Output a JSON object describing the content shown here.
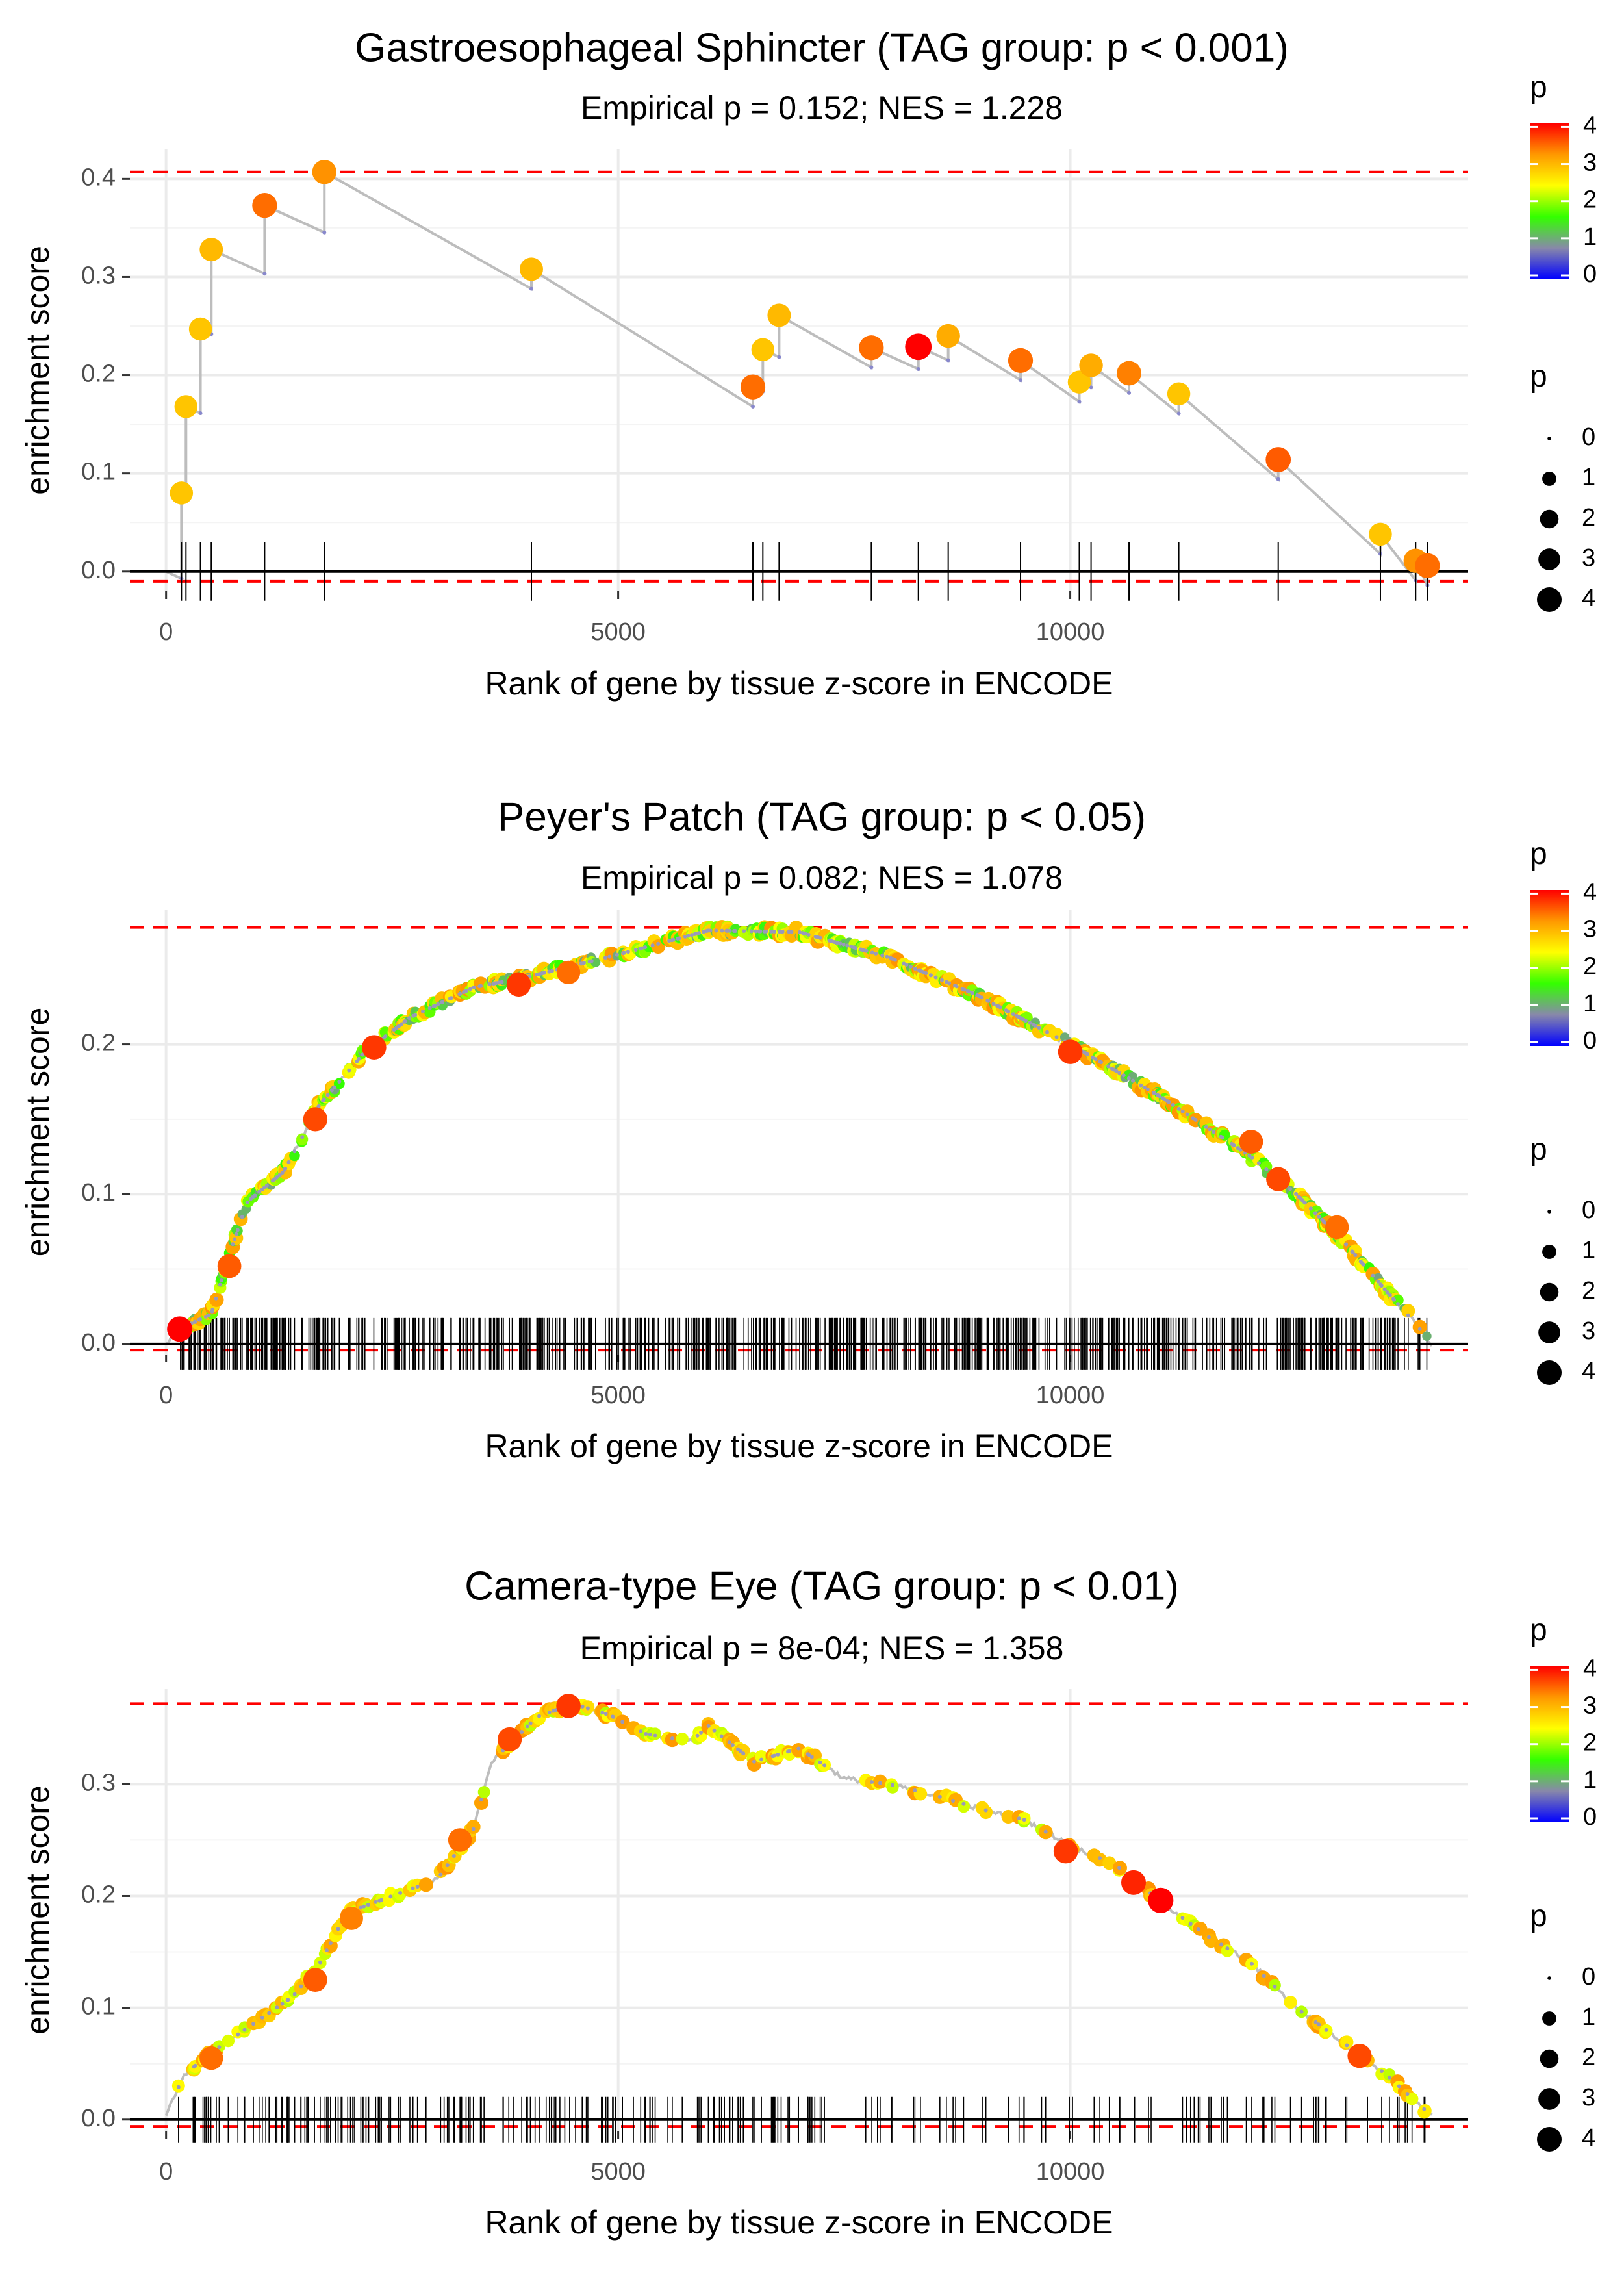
{
  "colors": {
    "curve": "#bdbdbd",
    "zero_line": "#000000",
    "limit_line": "#ff0000",
    "grid": "#ebebeb",
    "tick_text": "#4d4d4d",
    "gradient": [
      "#0000ff",
      "#8888aa",
      "#33ff00",
      "#ffff00",
      "#ff9900",
      "#ff0000"
    ]
  },
  "legend": {
    "color_title": "p",
    "color_ticks": [
      "0",
      "1",
      "2",
      "3",
      "4"
    ],
    "size_title": "p",
    "size_ticks": [
      "0",
      "1",
      "2",
      "3",
      "4"
    ]
  },
  "chart_data": [
    {
      "type": "scatter",
      "title": "Gastroesophageal Sphincter (TAG group: p < 0.001)",
      "subtitle": "Empirical p = 0.152; NES = 1.228",
      "xlabel": "Rank of gene by tissue z-score in ENCODE",
      "ylabel": "enrichment score",
      "xlim": [
        -400,
        14400
      ],
      "ylim": [
        -0.02,
        0.43
      ],
      "xticks": [
        0,
        5000,
        10000
      ],
      "xtick_labels": [
        "0",
        "5000",
        "10000"
      ],
      "yticks": [
        0.0,
        0.1,
        0.2,
        0.3,
        0.4
      ],
      "ytick_labels": [
        "0.0",
        "0.1",
        "0.2",
        "0.3",
        "0.4"
      ],
      "max_es": 0.407,
      "min_es": -0.01,
      "total_genes": 14000,
      "hits": [
        {
          "rank": 170,
          "es": 0.08,
          "p": 3.0
        },
        {
          "rank": 220,
          "es": 0.168,
          "p": 3.0
        },
        {
          "rank": 380,
          "es": 0.247,
          "p": 3.0
        },
        {
          "rank": 500,
          "es": 0.328,
          "p": 3.1
        },
        {
          "rank": 1090,
          "es": 0.373,
          "p": 3.6
        },
        {
          "rank": 1750,
          "es": 0.407,
          "p": 3.4
        },
        {
          "rank": 4040,
          "es": 0.308,
          "p": 3.1
        },
        {
          "rank": 6490,
          "es": 0.188,
          "p": 3.6
        },
        {
          "rank": 6600,
          "es": 0.226,
          "p": 3.0
        },
        {
          "rank": 6780,
          "es": 0.261,
          "p": 3.1
        },
        {
          "rank": 7800,
          "es": 0.228,
          "p": 3.6
        },
        {
          "rank": 8320,
          "es": 0.229,
          "p": 4.2
        },
        {
          "rank": 8650,
          "es": 0.24,
          "p": 3.2
        },
        {
          "rank": 9450,
          "es": 0.215,
          "p": 3.6
        },
        {
          "rank": 10100,
          "es": 0.193,
          "p": 3.0
        },
        {
          "rank": 10230,
          "es": 0.21,
          "p": 3.2
        },
        {
          "rank": 10650,
          "es": 0.202,
          "p": 3.5
        },
        {
          "rank": 11200,
          "es": 0.181,
          "p": 3.0
        },
        {
          "rank": 12300,
          "es": 0.114,
          "p": 3.7
        },
        {
          "rank": 13430,
          "es": 0.038,
          "p": 3.0
        },
        {
          "rank": 13820,
          "es": 0.011,
          "p": 3.4
        },
        {
          "rank": 13950,
          "es": 0.006,
          "p": 3.6
        }
      ]
    },
    {
      "type": "scatter",
      "title": "Peyer's Patch (TAG group: p < 0.05)",
      "subtitle": "Empirical p = 0.082; NES = 1.078",
      "xlabel": "Rank of gene by tissue z-score in ENCODE",
      "ylabel": "enrichment score",
      "xlim": [
        -400,
        14400
      ],
      "ylim": [
        -0.007,
        0.29
      ],
      "xticks": [
        0,
        5000,
        10000
      ],
      "xtick_labels": [
        "0",
        "5000",
        "10000"
      ],
      "yticks": [
        0.0,
        0.1,
        0.2
      ],
      "ytick_labels": [
        "0.0",
        "0.1",
        "0.2"
      ],
      "max_es": 0.278,
      "min_es": -0.004,
      "total_genes": 14000,
      "curve": [
        [
          0,
          0.0
        ],
        [
          150,
          0.01
        ],
        [
          500,
          0.02
        ],
        [
          700,
          0.06
        ],
        [
          900,
          0.095
        ],
        [
          1300,
          0.115
        ],
        [
          1700,
          0.16
        ],
        [
          2200,
          0.195
        ],
        [
          2700,
          0.218
        ],
        [
          3400,
          0.238
        ],
        [
          4000,
          0.245
        ],
        [
          5000,
          0.26
        ],
        [
          6000,
          0.276
        ],
        [
          7000,
          0.275
        ],
        [
          8000,
          0.258
        ],
        [
          9000,
          0.232
        ],
        [
          10000,
          0.2
        ],
        [
          11000,
          0.165
        ],
        [
          12000,
          0.125
        ],
        [
          12500,
          0.1
        ],
        [
          13000,
          0.07
        ],
        [
          13500,
          0.035
        ],
        [
          13800,
          0.015
        ],
        [
          14000,
          0.0
        ]
      ],
      "hit_count": 700,
      "big_points": [
        {
          "rank": 150,
          "es": 0.01,
          "p": 4.2
        },
        {
          "rank": 700,
          "es": 0.052,
          "p": 3.7
        },
        {
          "rank": 1650,
          "es": 0.15,
          "p": 3.8
        },
        {
          "rank": 2300,
          "es": 0.198,
          "p": 3.9
        },
        {
          "rank": 3900,
          "es": 0.24,
          "p": 3.9
        },
        {
          "rank": 4450,
          "es": 0.248,
          "p": 3.6
        },
        {
          "rank": 10000,
          "es": 0.195,
          "p": 3.9
        },
        {
          "rank": 12000,
          "es": 0.135,
          "p": 3.7
        },
        {
          "rank": 12300,
          "es": 0.11,
          "p": 3.8
        },
        {
          "rank": 12950,
          "es": 0.078,
          "p": 3.6
        }
      ]
    },
    {
      "type": "scatter",
      "title": "Camera-type Eye (TAG group: p < 0.01)",
      "subtitle": "Empirical p = 8e-04; NES = 1.358",
      "xlabel": "Rank of gene by tissue z-score in ENCODE",
      "ylabel": "enrichment score",
      "xlim": [
        -400,
        14400
      ],
      "ylim": [
        -0.01,
        0.385
      ],
      "xticks": [
        0,
        5000,
        10000
      ],
      "xtick_labels": [
        "0",
        "5000",
        "10000"
      ],
      "yticks": [
        0.0,
        0.1,
        0.2,
        0.3
      ],
      "ytick_labels": [
        "0.0",
        "0.1",
        "0.2",
        "0.3"
      ],
      "max_es": 0.372,
      "min_es": -0.006,
      "total_genes": 14000,
      "curve": [
        [
          0,
          0.005
        ],
        [
          200,
          0.04
        ],
        [
          500,
          0.06
        ],
        [
          900,
          0.082
        ],
        [
          1400,
          0.11
        ],
        [
          1700,
          0.14
        ],
        [
          2000,
          0.185
        ],
        [
          2500,
          0.2
        ],
        [
          3000,
          0.215
        ],
        [
          3400,
          0.26
        ],
        [
          3600,
          0.32
        ],
        [
          4100,
          0.36
        ],
        [
          4500,
          0.372
        ],
        [
          4900,
          0.362
        ],
        [
          5300,
          0.345
        ],
        [
          5800,
          0.338
        ],
        [
          6000,
          0.352
        ],
        [
          6500,
          0.32
        ],
        [
          7000,
          0.332
        ],
        [
          7500,
          0.305
        ],
        [
          8000,
          0.3
        ],
        [
          8500,
          0.29
        ],
        [
          9000,
          0.278
        ],
        [
          9500,
          0.268
        ],
        [
          10000,
          0.245
        ],
        [
          10500,
          0.228
        ],
        [
          11000,
          0.195
        ],
        [
          11500,
          0.165
        ],
        [
          12000,
          0.14
        ],
        [
          12500,
          0.1
        ],
        [
          13000,
          0.07
        ],
        [
          13500,
          0.04
        ],
        [
          14000,
          0.003
        ]
      ],
      "hit_count": 260,
      "big_points": [
        {
          "rank": 500,
          "es": 0.055,
          "p": 3.6
        },
        {
          "rank": 1650,
          "es": 0.125,
          "p": 3.7
        },
        {
          "rank": 2050,
          "es": 0.18,
          "p": 3.5
        },
        {
          "rank": 3250,
          "es": 0.25,
          "p": 3.6
        },
        {
          "rank": 3800,
          "es": 0.34,
          "p": 3.8
        },
        {
          "rank": 4450,
          "es": 0.37,
          "p": 3.9
        },
        {
          "rank": 9950,
          "es": 0.24,
          "p": 3.9
        },
        {
          "rank": 10700,
          "es": 0.212,
          "p": 4.0
        },
        {
          "rank": 11000,
          "es": 0.196,
          "p": 4.3
        },
        {
          "rank": 13200,
          "es": 0.057,
          "p": 3.8
        }
      ]
    }
  ]
}
